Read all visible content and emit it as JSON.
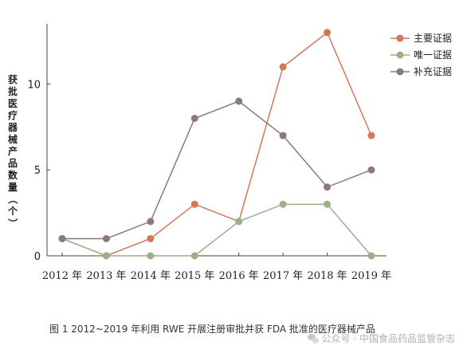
{
  "chart_data": {
    "type": "line",
    "title": "",
    "xlabel": "",
    "ylabel": "获批医疗器械产品数量（个）",
    "categories": [
      "2012 年",
      "2013 年",
      "2014 年",
      "2015 年",
      "2016 年",
      "2017 年",
      "2018 年",
      "2019 年"
    ],
    "ylim": [
      0,
      13.5
    ],
    "yticks": [
      "0",
      "5",
      "10"
    ],
    "grid": false,
    "legend_position": "top-right",
    "series": [
      {
        "name": "主要证据",
        "color": "#d4785a",
        "values": [
          1,
          0,
          1,
          3,
          2,
          11,
          13,
          7
        ]
      },
      {
        "name": "唯一证据",
        "color": "#9bb08a",
        "values": [
          1,
          0,
          0,
          0,
          2,
          3,
          3,
          0
        ]
      },
      {
        "name": "补充证据",
        "color": "#8e7878",
        "values": [
          1,
          1,
          2,
          8,
          9,
          7,
          4,
          5
        ]
      }
    ]
  },
  "caption": "图 1   2012~2019 年利用 RWE 开展注册审批并获 FDA 批准的医疗器械产品",
  "watermark": {
    "icon": "wechat-icon",
    "text": "公众号 · 中国食品药品监管杂志"
  }
}
